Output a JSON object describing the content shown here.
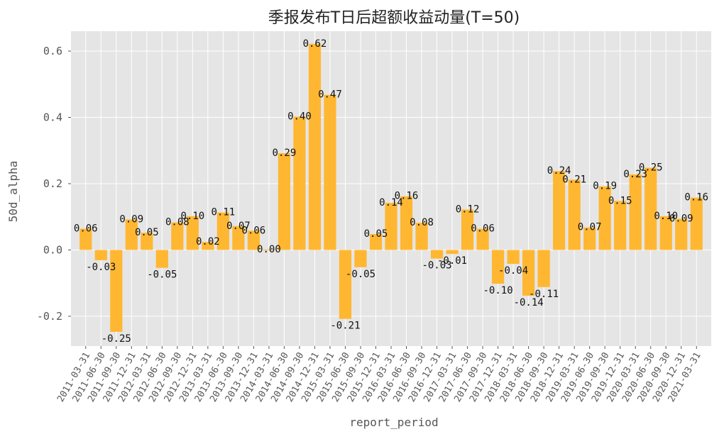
{
  "chart_data": {
    "type": "bar",
    "title": "季报发布T日后超额收益动量(T=50)",
    "xlabel": "report_period",
    "ylabel": "50d_alpha",
    "ylim": [
      -0.29,
      0.66
    ],
    "yticks": [
      -0.2,
      0.0,
      0.2,
      0.4,
      0.6
    ],
    "ytick_labels": [
      "-0.2",
      "0.0",
      "0.2",
      "0.4",
      "0.6"
    ],
    "grid": true,
    "bar_color": "#FFB732",
    "background_color": "#E5E5E5",
    "categories": [
      "2011-03-31",
      "2011-06-30",
      "2011-09-30",
      "2011-12-31",
      "2012-03-31",
      "2012-06-30",
      "2012-09-30",
      "2012-12-31",
      "2013-03-31",
      "2013-06-30",
      "2013-09-30",
      "2013-12-31",
      "2014-03-31",
      "2014-06-30",
      "2014-09-30",
      "2014-12-31",
      "2015-03-31",
      "2015-06-30",
      "2015-09-30",
      "2015-12-31",
      "2016-03-31",
      "2016-06-30",
      "2016-09-30",
      "2016-12-31",
      "2017-03-31",
      "2017-06-30",
      "2017-09-30",
      "2017-12-31",
      "2018-03-31",
      "2018-06-30",
      "2018-09-30",
      "2018-12-31",
      "2019-03-31",
      "2019-06-30",
      "2019-09-30",
      "2019-12-31",
      "2020-03-31",
      "2020-06-30",
      "2020-09-30",
      "2020-12-31",
      "2021-03-31"
    ],
    "values": [
      0.064,
      -0.031,
      -0.247,
      0.092,
      0.052,
      -0.054,
      0.083,
      0.102,
      0.024,
      0.113,
      0.072,
      0.058,
      0.001,
      0.292,
      0.402,
      0.622,
      0.468,
      -0.208,
      -0.052,
      0.048,
      0.142,
      0.162,
      0.082,
      -0.026,
      -0.012,
      0.122,
      0.064,
      -0.102,
      -0.042,
      -0.138,
      -0.112,
      0.238,
      0.212,
      0.068,
      0.192,
      0.148,
      0.228,
      0.248,
      0.102,
      0.094,
      0.158
    ],
    "data_labels": [
      "0.06",
      "-0.03",
      "-0.25",
      "0.09",
      "0.05",
      "-0.05",
      "0.08",
      "0.10",
      "0.02",
      "0.11",
      "0.07",
      "0.06",
      "0.00",
      "0.29",
      "0.40",
      "0.62",
      "0.47",
      "-0.21",
      "-0.05",
      "0.05",
      "0.14",
      "0.16",
      "0.08",
      "-0.03",
      "-0.01",
      "0.12",
      "0.06",
      "-0.10",
      "-0.04",
      "-0.14",
      "-0.11",
      "0.24",
      "0.21",
      "0.07",
      "0.19",
      "0.15",
      "0.23",
      "0.25",
      "0.10",
      "0.09",
      "0.16"
    ]
  }
}
